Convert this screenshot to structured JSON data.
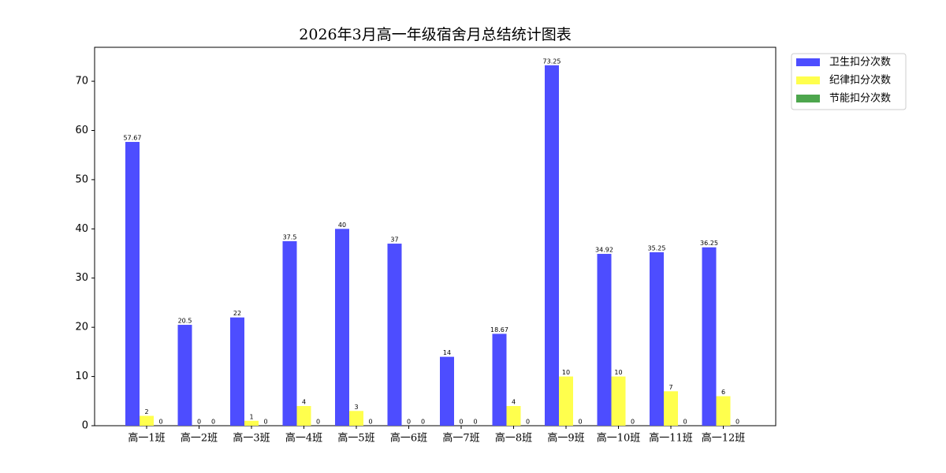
{
  "chart_data": {
    "type": "bar",
    "title": "2026年3月高一年级宿舍月总结统计图表",
    "categories": [
      "高一1班",
      "高一2班",
      "高一3班",
      "高一4班",
      "高一5班",
      "高一6班",
      "高一7班",
      "高一8班",
      "高一9班",
      "高一10班",
      "高一11班",
      "高一12班"
    ],
    "series": [
      {
        "name": "卫生扣分次数",
        "color": "#4d4dff",
        "values": [
          57.67,
          20.5,
          22,
          37.5,
          40,
          37,
          14,
          18.67,
          73.25,
          34.92,
          35.25,
          36.25
        ]
      },
      {
        "name": "纪律扣分次数",
        "color": "#ffff4d",
        "values": [
          2,
          0,
          1,
          4,
          3,
          0,
          0,
          4,
          10,
          10,
          7,
          6
        ]
      },
      {
        "name": "节能扣分次数",
        "color": "#4da64d",
        "values": [
          0,
          0,
          0,
          0,
          0,
          0,
          0,
          0,
          0,
          0,
          0,
          0
        ]
      }
    ],
    "ylim": [
      0,
      76.9
    ],
    "yticks": [
      0,
      10,
      20,
      30,
      40,
      50,
      60,
      70
    ],
    "legend": "upper right"
  }
}
